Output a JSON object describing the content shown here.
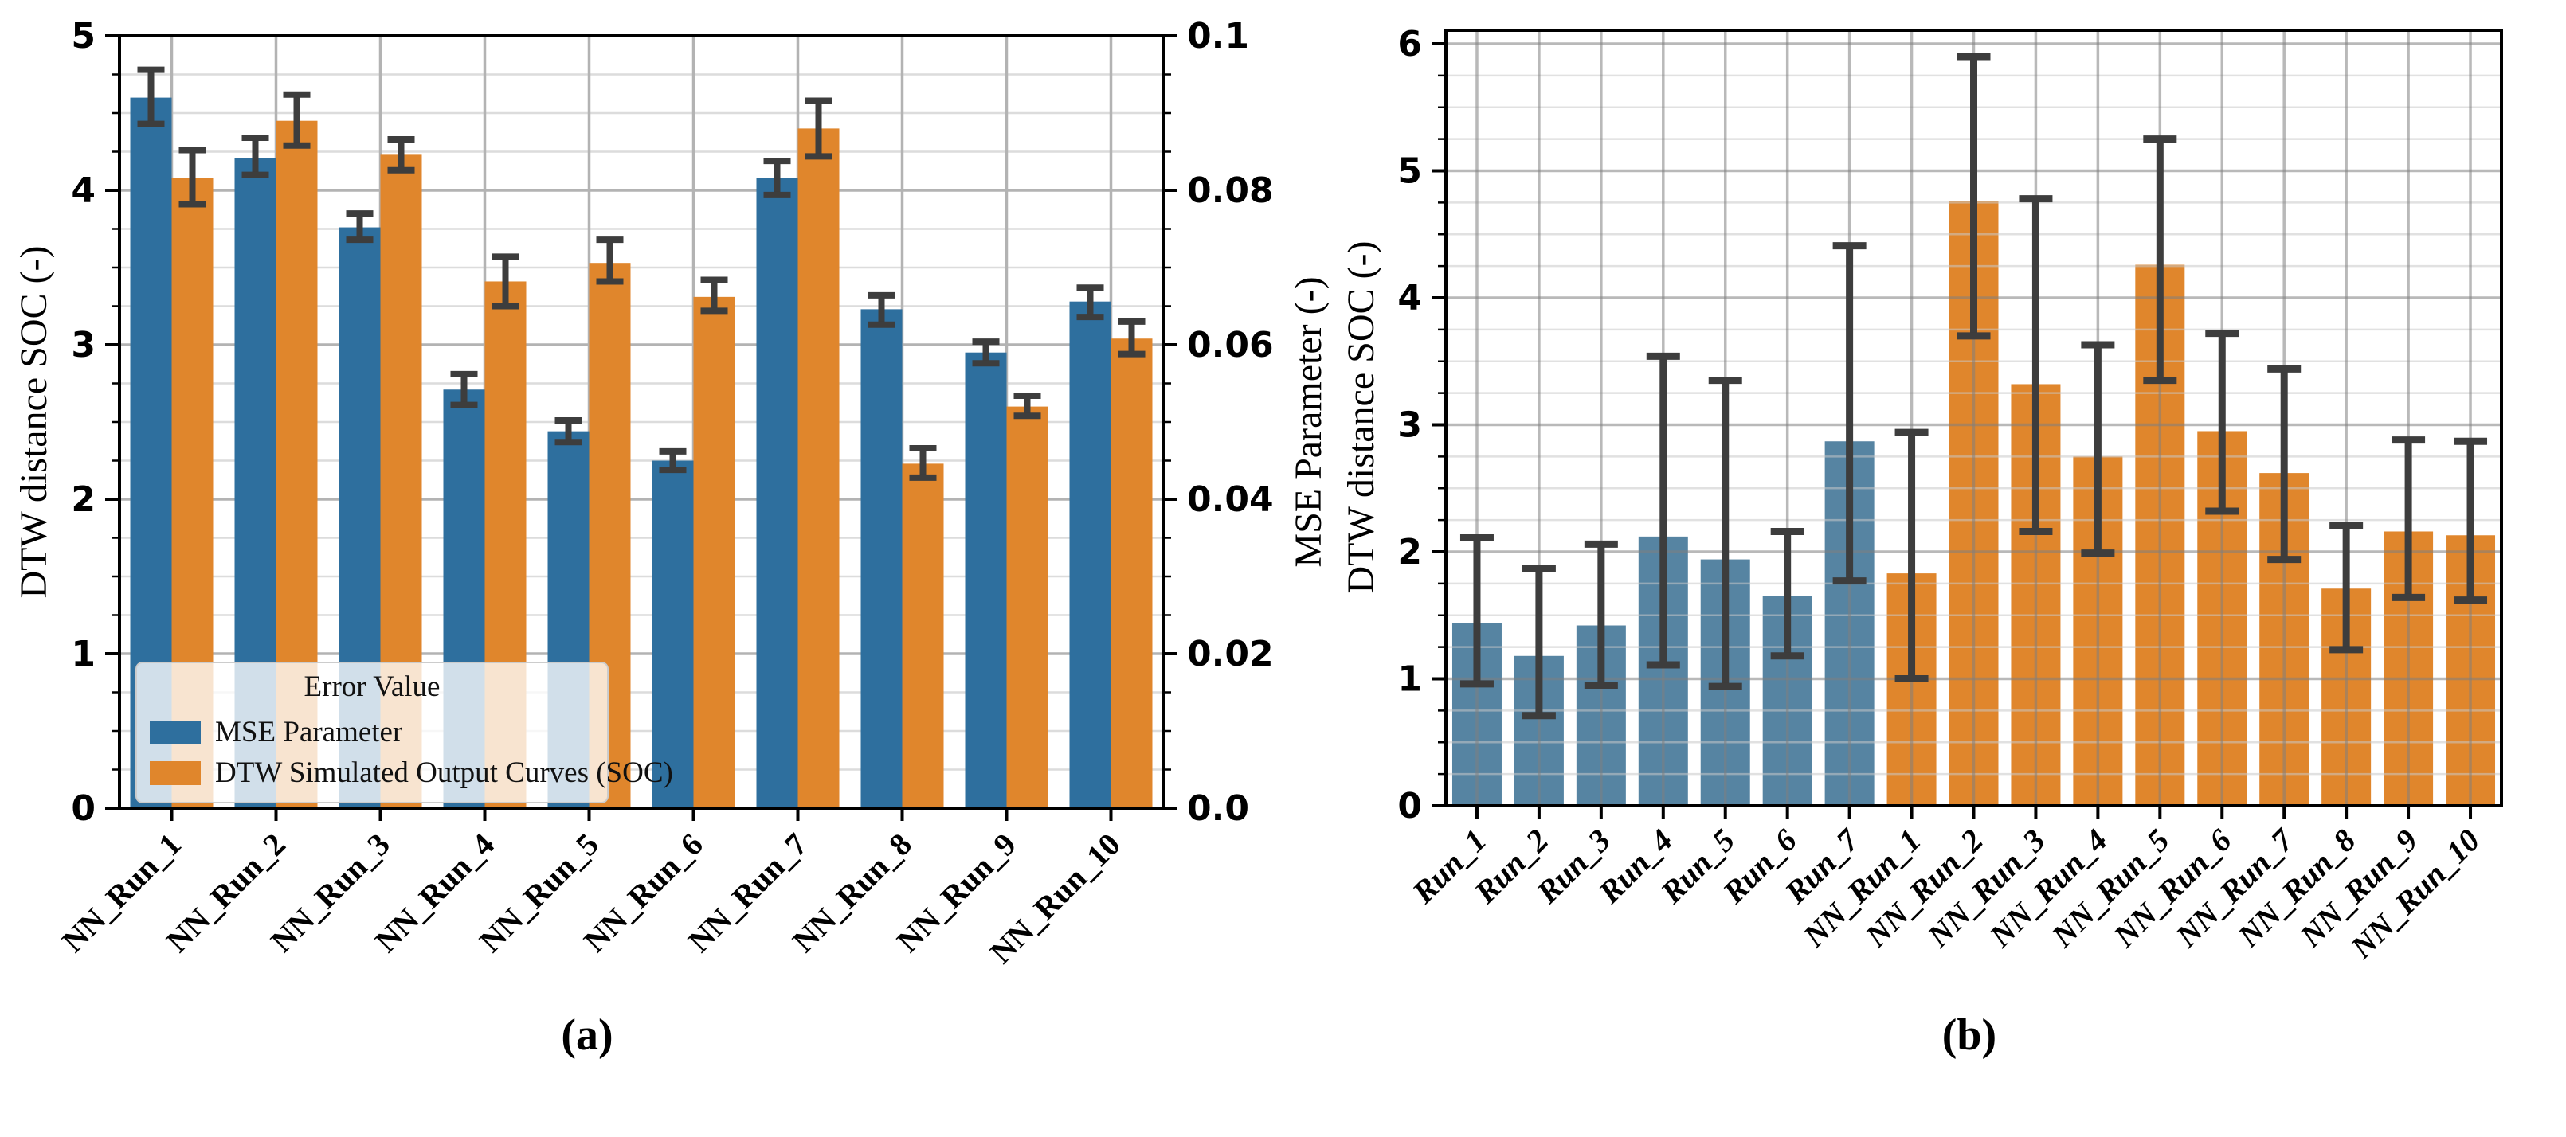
{
  "figure": {
    "caption_a": "(a)",
    "caption_b": "(b)"
  },
  "chart_data": [
    {
      "id": "a",
      "type": "bar",
      "categories": [
        "NN_Run_1",
        "NN_Run_2",
        "NN_Run_3",
        "NN_Run_4",
        "NN_Run_5",
        "NN_Run_6",
        "NN_Run_7",
        "NN_Run_8",
        "NN_Run_9",
        "NN_Run_10"
      ],
      "ylabel_left": "DTW distance SOC (-)",
      "ylabel_right": "MSE Parameter (-)",
      "y_left": {
        "lim": [
          0,
          5
        ],
        "ticks": [
          "0",
          "1",
          "2",
          "3",
          "4",
          "5"
        ],
        "minor_step": 0.25,
        "grid": true
      },
      "y_right": {
        "lim": [
          0,
          0.1
        ],
        "ticks": [
          "0.0",
          "0.02",
          "0.04",
          "0.06",
          "0.08",
          "0.1"
        ]
      },
      "legend": {
        "title": "Error Value",
        "position": "lower left"
      },
      "series": [
        {
          "name": "MSE Parameter",
          "color": "#2e6f9e",
          "axis": "right",
          "scale_to_left": 50,
          "values": [
            0.092,
            0.0842,
            0.0752,
            0.0542,
            0.0488,
            0.045,
            0.0816,
            0.0646,
            0.059,
            0.0656
          ],
          "err_low": [
            0.0886,
            0.082,
            0.0736,
            0.0522,
            0.0474,
            0.0438,
            0.0794,
            0.0626,
            0.0576,
            0.0636
          ],
          "err_high": [
            0.0956,
            0.0868,
            0.077,
            0.0562,
            0.0502,
            0.0462,
            0.0838,
            0.0664,
            0.0604,
            0.0674
          ]
        },
        {
          "name": "DTW Simulated Output Curves (SOC)",
          "color": "#e0862c",
          "axis": "left",
          "scale_to_left": 1,
          "values": [
            4.08,
            4.45,
            4.23,
            3.41,
            3.53,
            3.31,
            4.4,
            2.23,
            2.6,
            3.04
          ],
          "err_low": [
            3.91,
            4.29,
            4.13,
            3.25,
            3.41,
            3.22,
            4.22,
            2.14,
            2.54,
            2.94
          ],
          "err_high": [
            4.26,
            4.62,
            4.33,
            3.57,
            3.68,
            3.42,
            4.58,
            2.33,
            2.67,
            3.15
          ]
        }
      ]
    },
    {
      "id": "b",
      "type": "bar",
      "categories": [
        "Run_1",
        "Run_2",
        "Run_3",
        "Run_4",
        "Run_5",
        "Run_6",
        "Run_7",
        "NN_Run_1",
        "NN_Run_2",
        "NN_Run_3",
        "NN_Run_4",
        "NN_Run_5",
        "NN_Run_6",
        "NN_Run_7",
        "NN_Run_8",
        "NN_Run_9",
        "NN_Run_10"
      ],
      "ylabel": "DTW distance SOC (-)",
      "ylim": [
        0,
        6.1
      ],
      "yticks": [
        "0",
        "1",
        "2",
        "3",
        "4",
        "5",
        "6"
      ],
      "minor_step": 0.25,
      "grid": "above-bars",
      "blue_count": 7,
      "colors": {
        "blue": "#5684a2",
        "orange": "#e0862c"
      },
      "values": [
        1.44,
        1.18,
        1.42,
        2.12,
        1.94,
        1.65,
        2.87,
        1.83,
        4.76,
        3.32,
        2.75,
        4.26,
        2.95,
        2.62,
        1.71,
        2.16,
        2.13
      ],
      "err_low": [
        0.96,
        0.71,
        0.95,
        1.11,
        0.94,
        1.18,
        1.77,
        1.0,
        3.7,
        2.16,
        1.99,
        3.35,
        2.32,
        1.94,
        1.23,
        1.64,
        1.62
      ],
      "err_high": [
        2.11,
        1.87,
        2.06,
        3.54,
        3.35,
        2.16,
        4.41,
        2.94,
        5.9,
        4.78,
        3.63,
        5.25,
        3.72,
        3.44,
        2.21,
        2.88,
        2.87
      ]
    }
  ],
  "style": {
    "error_bar_color": "#3d3d3d",
    "grid_major_color": "#b3b3b3",
    "grid_minor_color": "#dcdcdc",
    "axis_color": "#000000"
  }
}
